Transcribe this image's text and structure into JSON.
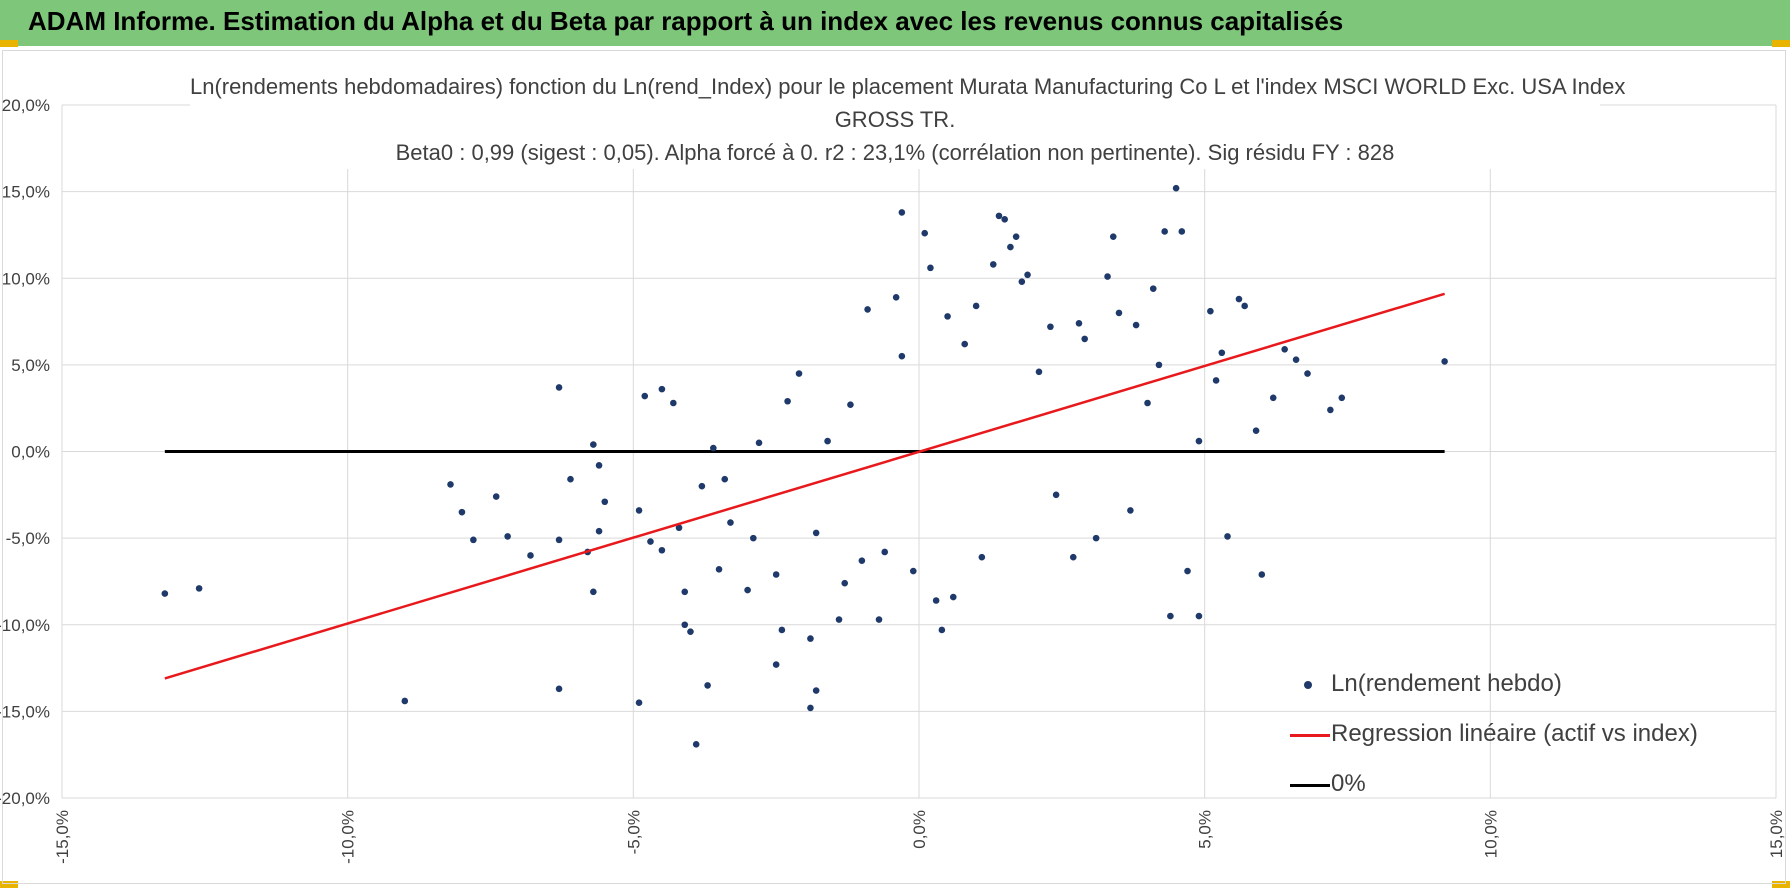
{
  "header": {
    "title": "ADAM Informe. Estimation du Alpha et du Beta par rapport à un index avec les revenus connus capitalisés",
    "bg_color": "#7dc67a",
    "corner_color": "#e8b400"
  },
  "chart_data": {
    "type": "scatter",
    "title_lines": [
      "Ln(rendements hebdomadaires) fonction du Ln(rend_Index) pour le placement Murata Manufacturing Co L et l'index MSCI WORLD Exc. USA Index",
      "GROSS TR.",
      "Beta0 : 0,99 (sigest : 0,05). Alpha forcé à 0. r2 : 23,1% (corrélation non pertinente). Sig résidu FY : 828"
    ],
    "xlabel": "",
    "ylabel": "",
    "xlim": [
      -0.15,
      0.15
    ],
    "ylim": [
      -0.2,
      0.2
    ],
    "x_ticks": [
      -0.15,
      -0.1,
      -0.05,
      0.0,
      0.05,
      0.1,
      0.15
    ],
    "x_tick_labels": [
      "-15,0%",
      "-10,0%",
      "-5,0%",
      "0,0%",
      "5,0%",
      "10,0%",
      "15,0%"
    ],
    "y_ticks": [
      0.2,
      0.15,
      0.1,
      0.05,
      0.0,
      -0.05,
      -0.1,
      -0.15,
      -0.2
    ],
    "y_tick_labels": [
      "20,0%",
      "15,0%",
      "10,0%",
      "5,0%",
      "0,0%",
      "-5,0%",
      "-10,0%",
      "-15,0%",
      "-20,0%"
    ],
    "grid": true,
    "legend_position": "bottom-right",
    "series": [
      {
        "name": "Ln(rendement hebdo)",
        "kind": "scatter",
        "color": "#1f3a6a",
        "points": [
          [
            -0.132,
            -0.082
          ],
          [
            -0.126,
            -0.079
          ],
          [
            -0.09,
            -0.144
          ],
          [
            -0.082,
            -0.019
          ],
          [
            -0.08,
            -0.035
          ],
          [
            -0.078,
            -0.051
          ],
          [
            -0.074,
            -0.026
          ],
          [
            -0.072,
            -0.049
          ],
          [
            -0.068,
            -0.06
          ],
          [
            -0.063,
            -0.051
          ],
          [
            -0.063,
            0.037
          ],
          [
            -0.063,
            -0.137
          ],
          [
            -0.061,
            -0.016
          ],
          [
            -0.058,
            -0.058
          ],
          [
            -0.057,
            0.004
          ],
          [
            -0.057,
            -0.081
          ],
          [
            -0.056,
            -0.008
          ],
          [
            -0.056,
            -0.046
          ],
          [
            -0.055,
            -0.029
          ],
          [
            -0.049,
            -0.145
          ],
          [
            -0.049,
            -0.034
          ],
          [
            -0.048,
            0.032
          ],
          [
            -0.047,
            -0.052
          ],
          [
            -0.045,
            -0.057
          ],
          [
            -0.045,
            0.036
          ],
          [
            -0.043,
            0.028
          ],
          [
            -0.042,
            -0.044
          ],
          [
            -0.041,
            -0.1
          ],
          [
            -0.041,
            -0.081
          ],
          [
            -0.04,
            -0.104
          ],
          [
            -0.039,
            -0.169
          ],
          [
            -0.038,
            -0.02
          ],
          [
            -0.037,
            -0.135
          ],
          [
            -0.036,
            0.002
          ],
          [
            -0.035,
            -0.068
          ],
          [
            -0.034,
            -0.016
          ],
          [
            -0.033,
            -0.041
          ],
          [
            -0.03,
            -0.08
          ],
          [
            -0.029,
            -0.05
          ],
          [
            -0.028,
            0.005
          ],
          [
            -0.025,
            -0.071
          ],
          [
            -0.025,
            -0.123
          ],
          [
            -0.024,
            -0.103
          ],
          [
            -0.023,
            0.029
          ],
          [
            -0.021,
            0.045
          ],
          [
            -0.019,
            -0.148
          ],
          [
            -0.019,
            -0.108
          ],
          [
            -0.018,
            -0.138
          ],
          [
            -0.018,
            -0.047
          ],
          [
            -0.016,
            0.006
          ],
          [
            -0.014,
            -0.097
          ],
          [
            -0.013,
            -0.076
          ],
          [
            -0.012,
            0.027
          ],
          [
            -0.01,
            -0.063
          ],
          [
            -0.009,
            0.082
          ],
          [
            -0.007,
            -0.097
          ],
          [
            -0.006,
            -0.058
          ],
          [
            -0.004,
            0.089
          ],
          [
            -0.003,
            0.055
          ],
          [
            -0.003,
            0.138
          ],
          [
            -0.001,
            -0.069
          ],
          [
            0.001,
            0.126
          ],
          [
            0.002,
            0.106
          ],
          [
            0.003,
            -0.086
          ],
          [
            0.004,
            -0.103
          ],
          [
            0.005,
            0.078
          ],
          [
            0.006,
            -0.084
          ],
          [
            0.008,
            0.062
          ],
          [
            0.01,
            0.084
          ],
          [
            0.011,
            -0.061
          ],
          [
            0.013,
            0.108
          ],
          [
            0.014,
            0.136
          ],
          [
            0.015,
            0.134
          ],
          [
            0.016,
            0.118
          ],
          [
            0.017,
            0.124
          ],
          [
            0.018,
            0.098
          ],
          [
            0.019,
            0.102
          ],
          [
            0.021,
            0.046
          ],
          [
            0.023,
            0.072
          ],
          [
            0.024,
            -0.025
          ],
          [
            0.027,
            -0.061
          ],
          [
            0.028,
            0.074
          ],
          [
            0.029,
            0.065
          ],
          [
            0.031,
            -0.05
          ],
          [
            0.033,
            0.101
          ],
          [
            0.034,
            0.124
          ],
          [
            0.035,
            0.08
          ],
          [
            0.037,
            -0.034
          ],
          [
            0.038,
            0.073
          ],
          [
            0.04,
            0.028
          ],
          [
            0.041,
            0.094
          ],
          [
            0.042,
            0.05
          ],
          [
            0.043,
            0.127
          ],
          [
            0.044,
            -0.095
          ],
          [
            0.045,
            0.152
          ],
          [
            0.046,
            0.127
          ],
          [
            0.047,
            -0.069
          ],
          [
            0.049,
            0.006
          ],
          [
            0.049,
            -0.095
          ],
          [
            0.051,
            0.081
          ],
          [
            0.052,
            0.041
          ],
          [
            0.053,
            0.057
          ],
          [
            0.054,
            -0.049
          ],
          [
            0.056,
            0.088
          ],
          [
            0.057,
            0.084
          ],
          [
            0.059,
            0.012
          ],
          [
            0.06,
            -0.071
          ],
          [
            0.062,
            0.031
          ],
          [
            0.064,
            0.059
          ],
          [
            0.066,
            0.053
          ],
          [
            0.068,
            0.045
          ],
          [
            0.072,
            0.024
          ],
          [
            0.074,
            0.031
          ],
          [
            0.092,
            0.052
          ]
        ]
      },
      {
        "name": "Regression linéaire (actif vs index)",
        "kind": "line",
        "color": "#e8191c",
        "x": [
          -0.132,
          0.092
        ],
        "y": [
          -0.131,
          0.091
        ]
      },
      {
        "name": "0%",
        "kind": "line",
        "color": "#000000",
        "x": [
          -0.132,
          0.092
        ],
        "y": [
          0.0,
          0.0
        ]
      }
    ]
  }
}
